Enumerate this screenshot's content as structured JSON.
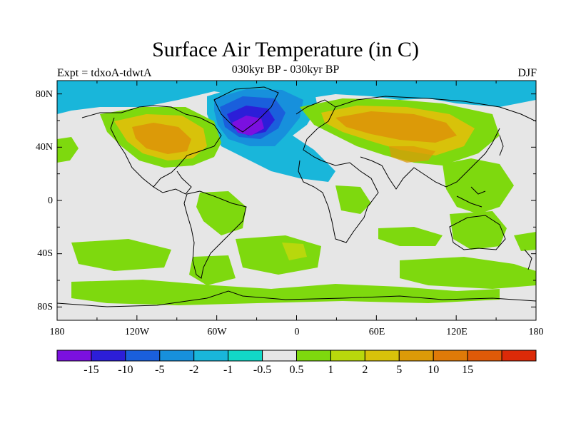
{
  "title": "Surface Air Temperature (in C)",
  "subtitle": "030kyr BP - 030kyr BP",
  "left_label": "Expt = tdxoA-tdwtA",
  "right_label": "DJF",
  "map": {
    "lat_labels": [
      "80N",
      "40N",
      "0",
      "40S",
      "80S"
    ],
    "lon_labels": [
      "180",
      "120W",
      "60W",
      "0",
      "60E",
      "120E",
      "180"
    ]
  },
  "colorbar": {
    "colors": [
      "#7b10e0",
      "#2c1ed8",
      "#1a5fdc",
      "#1790dc",
      "#19b6da",
      "#12d8c7",
      "#e6e6e6",
      "#7ed90e",
      "#b8d80c",
      "#d8c20a",
      "#dc9a08",
      "#e07a08",
      "#e05a08",
      "#dc2a08"
    ],
    "labels": [
      "-15",
      "-10",
      "-5",
      "-2",
      "-1",
      "-0.5",
      "0.5",
      "1",
      "2",
      "5",
      "10",
      "15"
    ]
  },
  "colors": {
    "background": "#e6e6e6",
    "coast": "#000000"
  }
}
